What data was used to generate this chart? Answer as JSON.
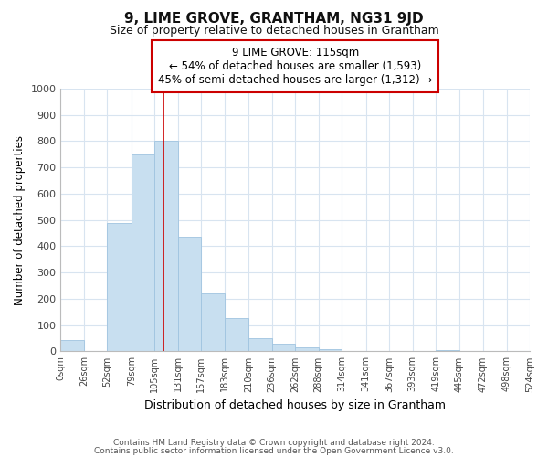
{
  "title": "9, LIME GROVE, GRANTHAM, NG31 9JD",
  "subtitle": "Size of property relative to detached houses in Grantham",
  "xlabel": "Distribution of detached houses by size in Grantham",
  "ylabel": "Number of detached properties",
  "bar_edges": [
    0,
    26,
    52,
    79,
    105,
    131,
    157,
    183,
    210,
    236,
    262,
    288,
    314,
    341,
    367,
    393,
    419,
    445,
    472,
    498,
    524
  ],
  "bar_heights": [
    43,
    0,
    487,
    750,
    800,
    435,
    220,
    125,
    50,
    30,
    15,
    8,
    3,
    0,
    0,
    0,
    5,
    0,
    0,
    0
  ],
  "bar_color": "#c8dff0",
  "bar_edge_color": "#a0c4e0",
  "property_line_x": 115,
  "property_line_color": "#cc0000",
  "annotation_line1": "9 LIME GROVE: 115sqm",
  "annotation_line2": "← 54% of detached houses are smaller (1,593)",
  "annotation_line3": "45% of semi-detached houses are larger (1,312) →",
  "annotation_box_color": "#ffffff",
  "annotation_box_edge": "#cc0000",
  "ylim": [
    0,
    1000
  ],
  "yticks": [
    0,
    100,
    200,
    300,
    400,
    500,
    600,
    700,
    800,
    900,
    1000
  ],
  "tick_labels": [
    "0sqm",
    "26sqm",
    "52sqm",
    "79sqm",
    "105sqm",
    "131sqm",
    "157sqm",
    "183sqm",
    "210sqm",
    "236sqm",
    "262sqm",
    "288sqm",
    "314sqm",
    "341sqm",
    "367sqm",
    "393sqm",
    "419sqm",
    "445sqm",
    "472sqm",
    "498sqm",
    "524sqm"
  ],
  "footer_line1": "Contains HM Land Registry data © Crown copyright and database right 2024.",
  "footer_line2": "Contains public sector information licensed under the Open Government Licence v3.0.",
  "bg_color": "#ffffff",
  "grid_color": "#d8e4f0",
  "xlim": [
    0,
    524
  ]
}
